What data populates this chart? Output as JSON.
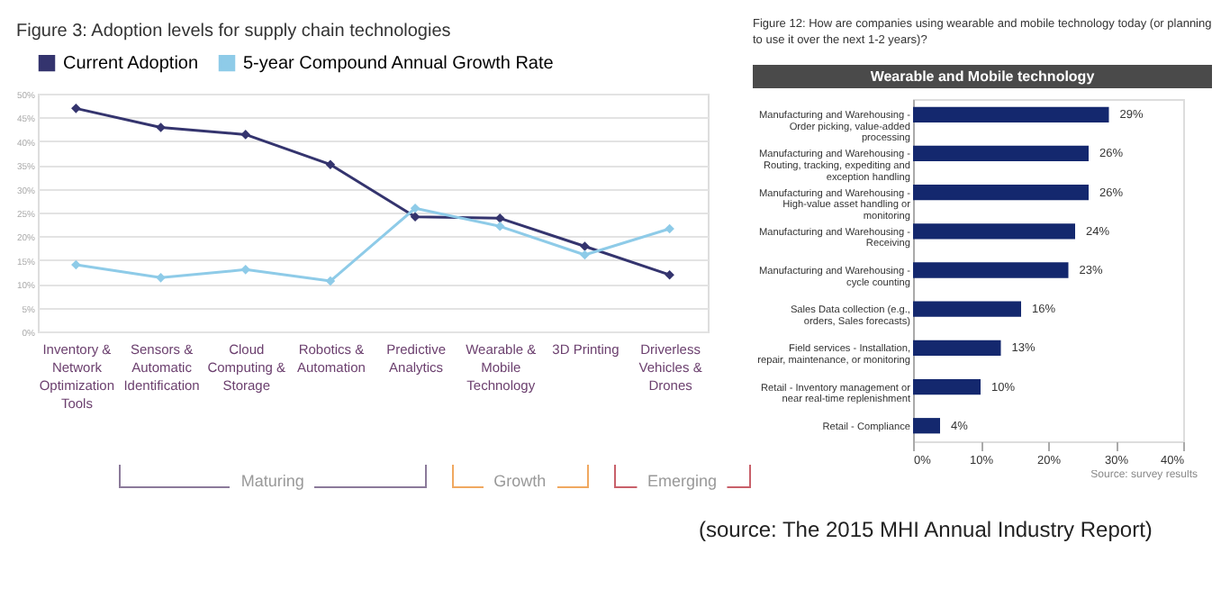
{
  "chart_data": [
    {
      "type": "line",
      "title": "Figure 3: Adoption levels for supply chain technologies",
      "categories": [
        "Inventory & Network Optimization Tools",
        "Sensors & Automatic Identification",
        "Cloud Computing & Storage",
        "Robotics & Automation",
        "Predictive Analytics",
        "Wearable & Mobile Technology",
        "3D Printing",
        "Driverless Vehicles & Drones"
      ],
      "series": [
        {
          "name": "Current Adoption",
          "color": "#34346e",
          "values": [
            46.9,
            42.9,
            41.4,
            35.1,
            24.1,
            23.8,
            17.9,
            11.9
          ]
        },
        {
          "name": "5-year Compound Annual Growth Rate",
          "color": "#8ecbe8",
          "values": [
            14.0,
            11.3,
            13.0,
            10.6,
            25.9,
            22.1,
            16.1,
            21.6
          ]
        }
      ],
      "ylim": [
        0,
        50
      ],
      "yticks": [
        {
          "value": 0,
          "label": "0%"
        },
        {
          "value": 5,
          "label": "5%"
        },
        {
          "value": 10,
          "label": "10%"
        },
        {
          "value": 15,
          "label": "15%"
        },
        {
          "value": 20,
          "label": "20%"
        },
        {
          "value": 25,
          "label": "25%"
        },
        {
          "value": 30,
          "label": "30%"
        },
        {
          "value": 35,
          "label": "35%"
        },
        {
          "value": 40,
          "label": "40%"
        },
        {
          "value": 45,
          "label": "45%"
        },
        {
          "value": 50,
          "label": "50%"
        }
      ],
      "grid": "y",
      "legend": "top left",
      "marker": "diamond",
      "annotations": [
        "Maturing",
        "Growth",
        "Emerging"
      ]
    },
    {
      "type": "bar",
      "orientation": "horizontal",
      "title": "Figure 12: How are companies using wearable and mobile technology today (or planning to use it over the next 1-2 years)?",
      "subtitle": "Wearable and Mobile technology",
      "categories": [
        "Manufacturing and Warehousing - Order picking, value-added processing",
        "Manufacturing and Warehousing - Routing, tracking, expediting and exception handling",
        "Manufacturing and Warehousing - High-value asset handling or monitoring",
        "Manufacturing and Warehousing - Receiving",
        "Manufacturing and Warehousing - cycle counting",
        "Sales Data collection (e.g., orders, Sales forecasts)",
        "Field services - Installation, repair, maintenance, or monitoring",
        "Retail - Inventory management or near real-time replenishment",
        "Retail - Compliance"
      ],
      "values": [
        29,
        26,
        26,
        24,
        23,
        16,
        13,
        10,
        4
      ],
      "value_labels": [
        "29%",
        "26%",
        "26%",
        "24%",
        "23%",
        "16%",
        "13%",
        "10%",
        "4%"
      ],
      "color": "#14286e",
      "xlim": [
        0,
        40
      ],
      "xticks": [
        {
          "value": 0,
          "label": "0%"
        },
        {
          "value": 10,
          "label": "10%"
        },
        {
          "value": 20,
          "label": "20%"
        },
        {
          "value": 30,
          "label": "30%"
        },
        {
          "value": 40,
          "label": "40%"
        }
      ],
      "annotations": [
        "Source: survey results",
        "(source: The 2015 MHI Annual Industry Report)"
      ]
    }
  ]
}
